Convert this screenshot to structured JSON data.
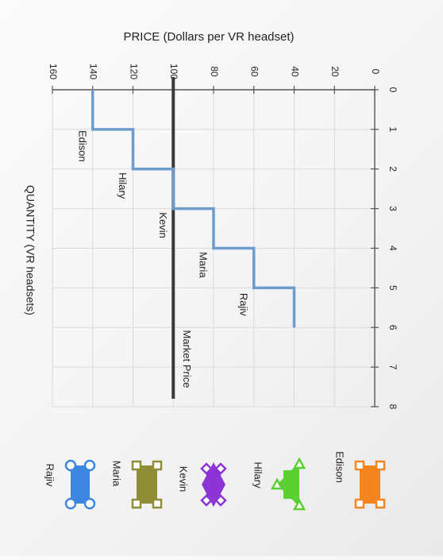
{
  "chart_data": {
    "type": "line",
    "title": "",
    "xlabel": "QUANTITY (VR headsets)",
    "ylabel": "PRICE (Dollars per VR headset)",
    "xlim": [
      0,
      8
    ],
    "ylim": [
      0,
      160
    ],
    "x_ticks": [
      "0",
      "1",
      "2",
      "3",
      "4",
      "5",
      "6",
      "7",
      "8"
    ],
    "y_ticks": [
      "0",
      "20",
      "40",
      "60",
      "80",
      "100",
      "120",
      "140",
      "160"
    ],
    "grid": true,
    "series": [
      {
        "type": "step",
        "color": "#6e9ccd",
        "points": [
          [
            0,
            140
          ],
          [
            1,
            140
          ],
          [
            1,
            120
          ],
          [
            2,
            120
          ],
          [
            2,
            100
          ],
          [
            3,
            100
          ],
          [
            3,
            80
          ],
          [
            4,
            80
          ],
          [
            4,
            60
          ],
          [
            5,
            60
          ],
          [
            5,
            40
          ],
          [
            6,
            40
          ]
        ]
      }
    ],
    "market_price": {
      "label": "Market Price",
      "value": 100,
      "color": "#3a3a3a"
    },
    "step_labels": [
      {
        "text": "Edison",
        "x": 1.5,
        "y": 140
      },
      {
        "text": "Hilary",
        "x": 2.5,
        "y": 120
      },
      {
        "text": "Kevin",
        "x": 3.5,
        "y": 100
      },
      {
        "text": "Maria",
        "x": 4.5,
        "y": 80
      },
      {
        "text": "Rajiv",
        "x": 5.5,
        "y": 60
      }
    ]
  },
  "palette": [
    {
      "label": "Edison",
      "shape": "square-corners",
      "color": "#f5851f",
      "icon": "orange-square-icon"
    },
    {
      "label": "Hilary",
      "shape": "triangle-corners",
      "color": "#5bd033",
      "icon": "green-triangle-icon"
    },
    {
      "label": "Kevin",
      "shape": "diamond-corners",
      "color": "#8c35d4",
      "icon": "purple-diamond-icon"
    },
    {
      "label": "Maria",
      "shape": "square-corners",
      "color": "#8f8d36",
      "icon": "olive-square-icon"
    },
    {
      "label": "Rajiv",
      "shape": "circle-corners",
      "color": "#3d86e0",
      "icon": "blue-circle-icon"
    }
  ]
}
